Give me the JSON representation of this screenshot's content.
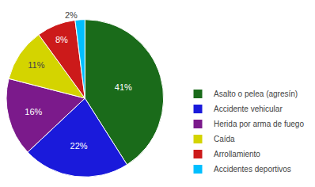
{
  "chart_data": {
    "type": "pie",
    "categories": [
      "Asalto o pelea (agresín)",
      "Accidente vehicular",
      "Herida por arma de fuego",
      "Caída",
      "Arrollamiento",
      "Accidentes deportivos"
    ],
    "values": [
      41,
      22,
      16,
      11,
      8,
      2
    ],
    "value_labels": [
      "41%",
      "22%",
      "16%",
      "11%",
      "8%",
      "2%"
    ],
    "colors": [
      "#1a6b1a",
      "#1a1adb",
      "#7b1a8b",
      "#d4d400",
      "#cc1a1a",
      "#00bfff"
    ],
    "data_labels": true,
    "legend": "lower right"
  }
}
